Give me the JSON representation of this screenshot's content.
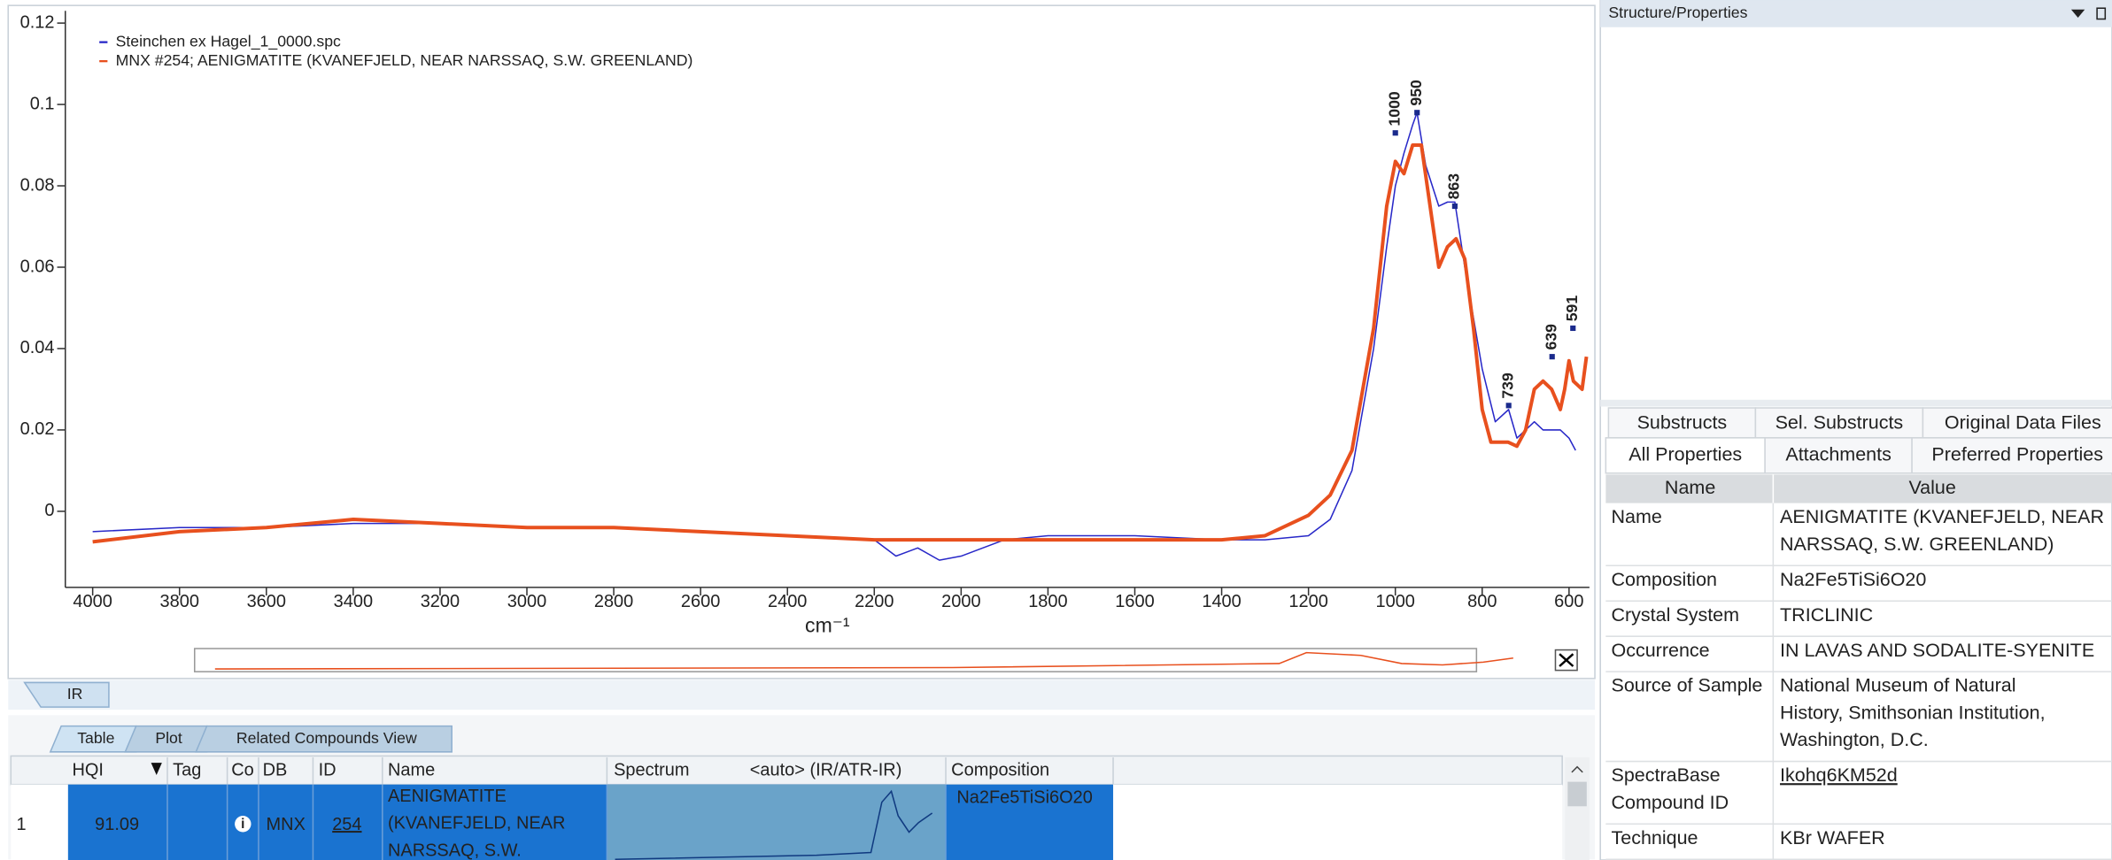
{
  "chart_data": {
    "type": "line",
    "xlabel": "cm⁻¹",
    "xlim": [
      4063,
      553
    ],
    "ylim": [
      -0.0187,
      0.123
    ],
    "xticks": [
      4000,
      3800,
      3600,
      3400,
      3200,
      3000,
      2800,
      2600,
      2400,
      2200,
      2000,
      1800,
      1600,
      1400,
      1200,
      1000,
      800,
      600
    ],
    "yticks": [
      0,
      0.02,
      0.04,
      0.06,
      0.08,
      0.1,
      0.12
    ],
    "legend": "upper left",
    "series": [
      {
        "name": "Steinchen ex Hagel_1_0000.spc",
        "color": "#2828c8",
        "x": [
          4000,
          3800,
          3600,
          3400,
          3200,
          3000,
          2800,
          2600,
          2400,
          2200,
          2150,
          2100,
          2050,
          2000,
          1950,
          1900,
          1800,
          1600,
          1400,
          1300,
          1200,
          1150,
          1100,
          1050,
          1020,
          1000,
          980,
          960,
          950,
          930,
          900,
          880,
          863,
          840,
          800,
          770,
          739,
          720,
          700,
          680,
          660,
          640,
          620,
          600,
          585
        ],
        "values": [
          -0.005,
          -0.004,
          -0.004,
          -0.003,
          -0.003,
          -0.004,
          -0.004,
          -0.005,
          -0.006,
          -0.007,
          -0.011,
          -0.009,
          -0.012,
          -0.011,
          -0.009,
          -0.007,
          -0.006,
          -0.006,
          -0.007,
          -0.007,
          -0.006,
          -0.002,
          0.01,
          0.04,
          0.065,
          0.08,
          0.088,
          0.095,
          0.098,
          0.085,
          0.075,
          0.076,
          0.076,
          0.06,
          0.035,
          0.022,
          0.025,
          0.018,
          0.02,
          0.022,
          0.02,
          0.02,
          0.02,
          0.018,
          0.015
        ]
      },
      {
        "name": "MNX #254; AENIGMATITE (KVANEFJELD, NEAR NARSSAQ, S.W. GREENLAND)",
        "color": "#e8501e",
        "x": [
          4000,
          3800,
          3600,
          3400,
          3200,
          3000,
          2800,
          2600,
          2400,
          2200,
          2000,
          1800,
          1600,
          1400,
          1300,
          1200,
          1150,
          1100,
          1050,
          1020,
          1000,
          980,
          960,
          940,
          920,
          900,
          880,
          860,
          840,
          820,
          800,
          780,
          760,
          740,
          720,
          700,
          680,
          660,
          640,
          620,
          610,
          600,
          590,
          570,
          560
        ],
        "values": [
          -0.0075,
          -0.005,
          -0.004,
          -0.002,
          -0.003,
          -0.004,
          -0.004,
          -0.005,
          -0.006,
          -0.007,
          -0.007,
          -0.007,
          -0.007,
          -0.007,
          -0.006,
          -0.001,
          0.004,
          0.015,
          0.045,
          0.075,
          0.086,
          0.083,
          0.09,
          0.09,
          0.075,
          0.06,
          0.065,
          0.067,
          0.062,
          0.045,
          0.025,
          0.017,
          0.017,
          0.017,
          0.016,
          0.02,
          0.03,
          0.032,
          0.03,
          0.025,
          0.03,
          0.037,
          0.032,
          0.03,
          0.038
        ]
      }
    ],
    "peaks": {
      "color": "#1a2a8c",
      "x": [
        1000,
        950,
        863,
        739,
        639,
        591
      ],
      "y": [
        0.093,
        0.098,
        0.075,
        0.026,
        0.038,
        0.045
      ]
    }
  },
  "workspace": {
    "plot_tab": "IR",
    "view_tabs": [
      "Table",
      "Plot",
      "Related Compounds View"
    ],
    "table": {
      "headers": [
        "HQI",
        "Tag",
        "Co",
        "DB",
        "ID",
        "Name",
        "Spectrum",
        "<auto> (IR/ATR-IR)",
        "Composition"
      ],
      "row": {
        "index": "1",
        "hqi": "91.09",
        "db": "MNX",
        "id": "254",
        "name_lines": [
          "AENIGMATITE",
          "(KVANEFJELD, NEAR",
          "NARSSAQ, S.W."
        ],
        "composition": "Na2Fe5TiSi6O20"
      }
    }
  },
  "properties": {
    "title": "Structure/Properties",
    "tabs_top": [
      "Substructs",
      "Sel. Substructs",
      "Original Data Files"
    ],
    "tabs_bottom": [
      "All Properties",
      "Attachments",
      "Preferred Properties"
    ],
    "headers": [
      "Name",
      "Value"
    ],
    "rows": [
      {
        "name": [
          "Name"
        ],
        "value": [
          "AENIGMATITE (KVANEFJELD, NEAR",
          "NARSSAQ, S.W. GREENLAND)"
        ]
      },
      {
        "name": [
          "Composition"
        ],
        "value": [
          "Na2Fe5TiSi6O20"
        ]
      },
      {
        "name": [
          "Crystal System"
        ],
        "value": [
          "TRICLINIC"
        ]
      },
      {
        "name": [
          "Occurrence"
        ],
        "value": [
          "IN LAVAS AND SODALITE-SYENITE"
        ]
      },
      {
        "name": [
          "Source of Sample"
        ],
        "value": [
          "National Museum of Natural",
          "History, Smithsonian Institution,",
          "Washington, D.C."
        ]
      },
      {
        "name": [
          "SpectraBase",
          "Compound ID"
        ],
        "value": [
          "Ikohq6KM52d"
        ],
        "link": true
      },
      {
        "name": [
          "Technique"
        ],
        "value": [
          "KBr WAFER"
        ]
      }
    ]
  }
}
